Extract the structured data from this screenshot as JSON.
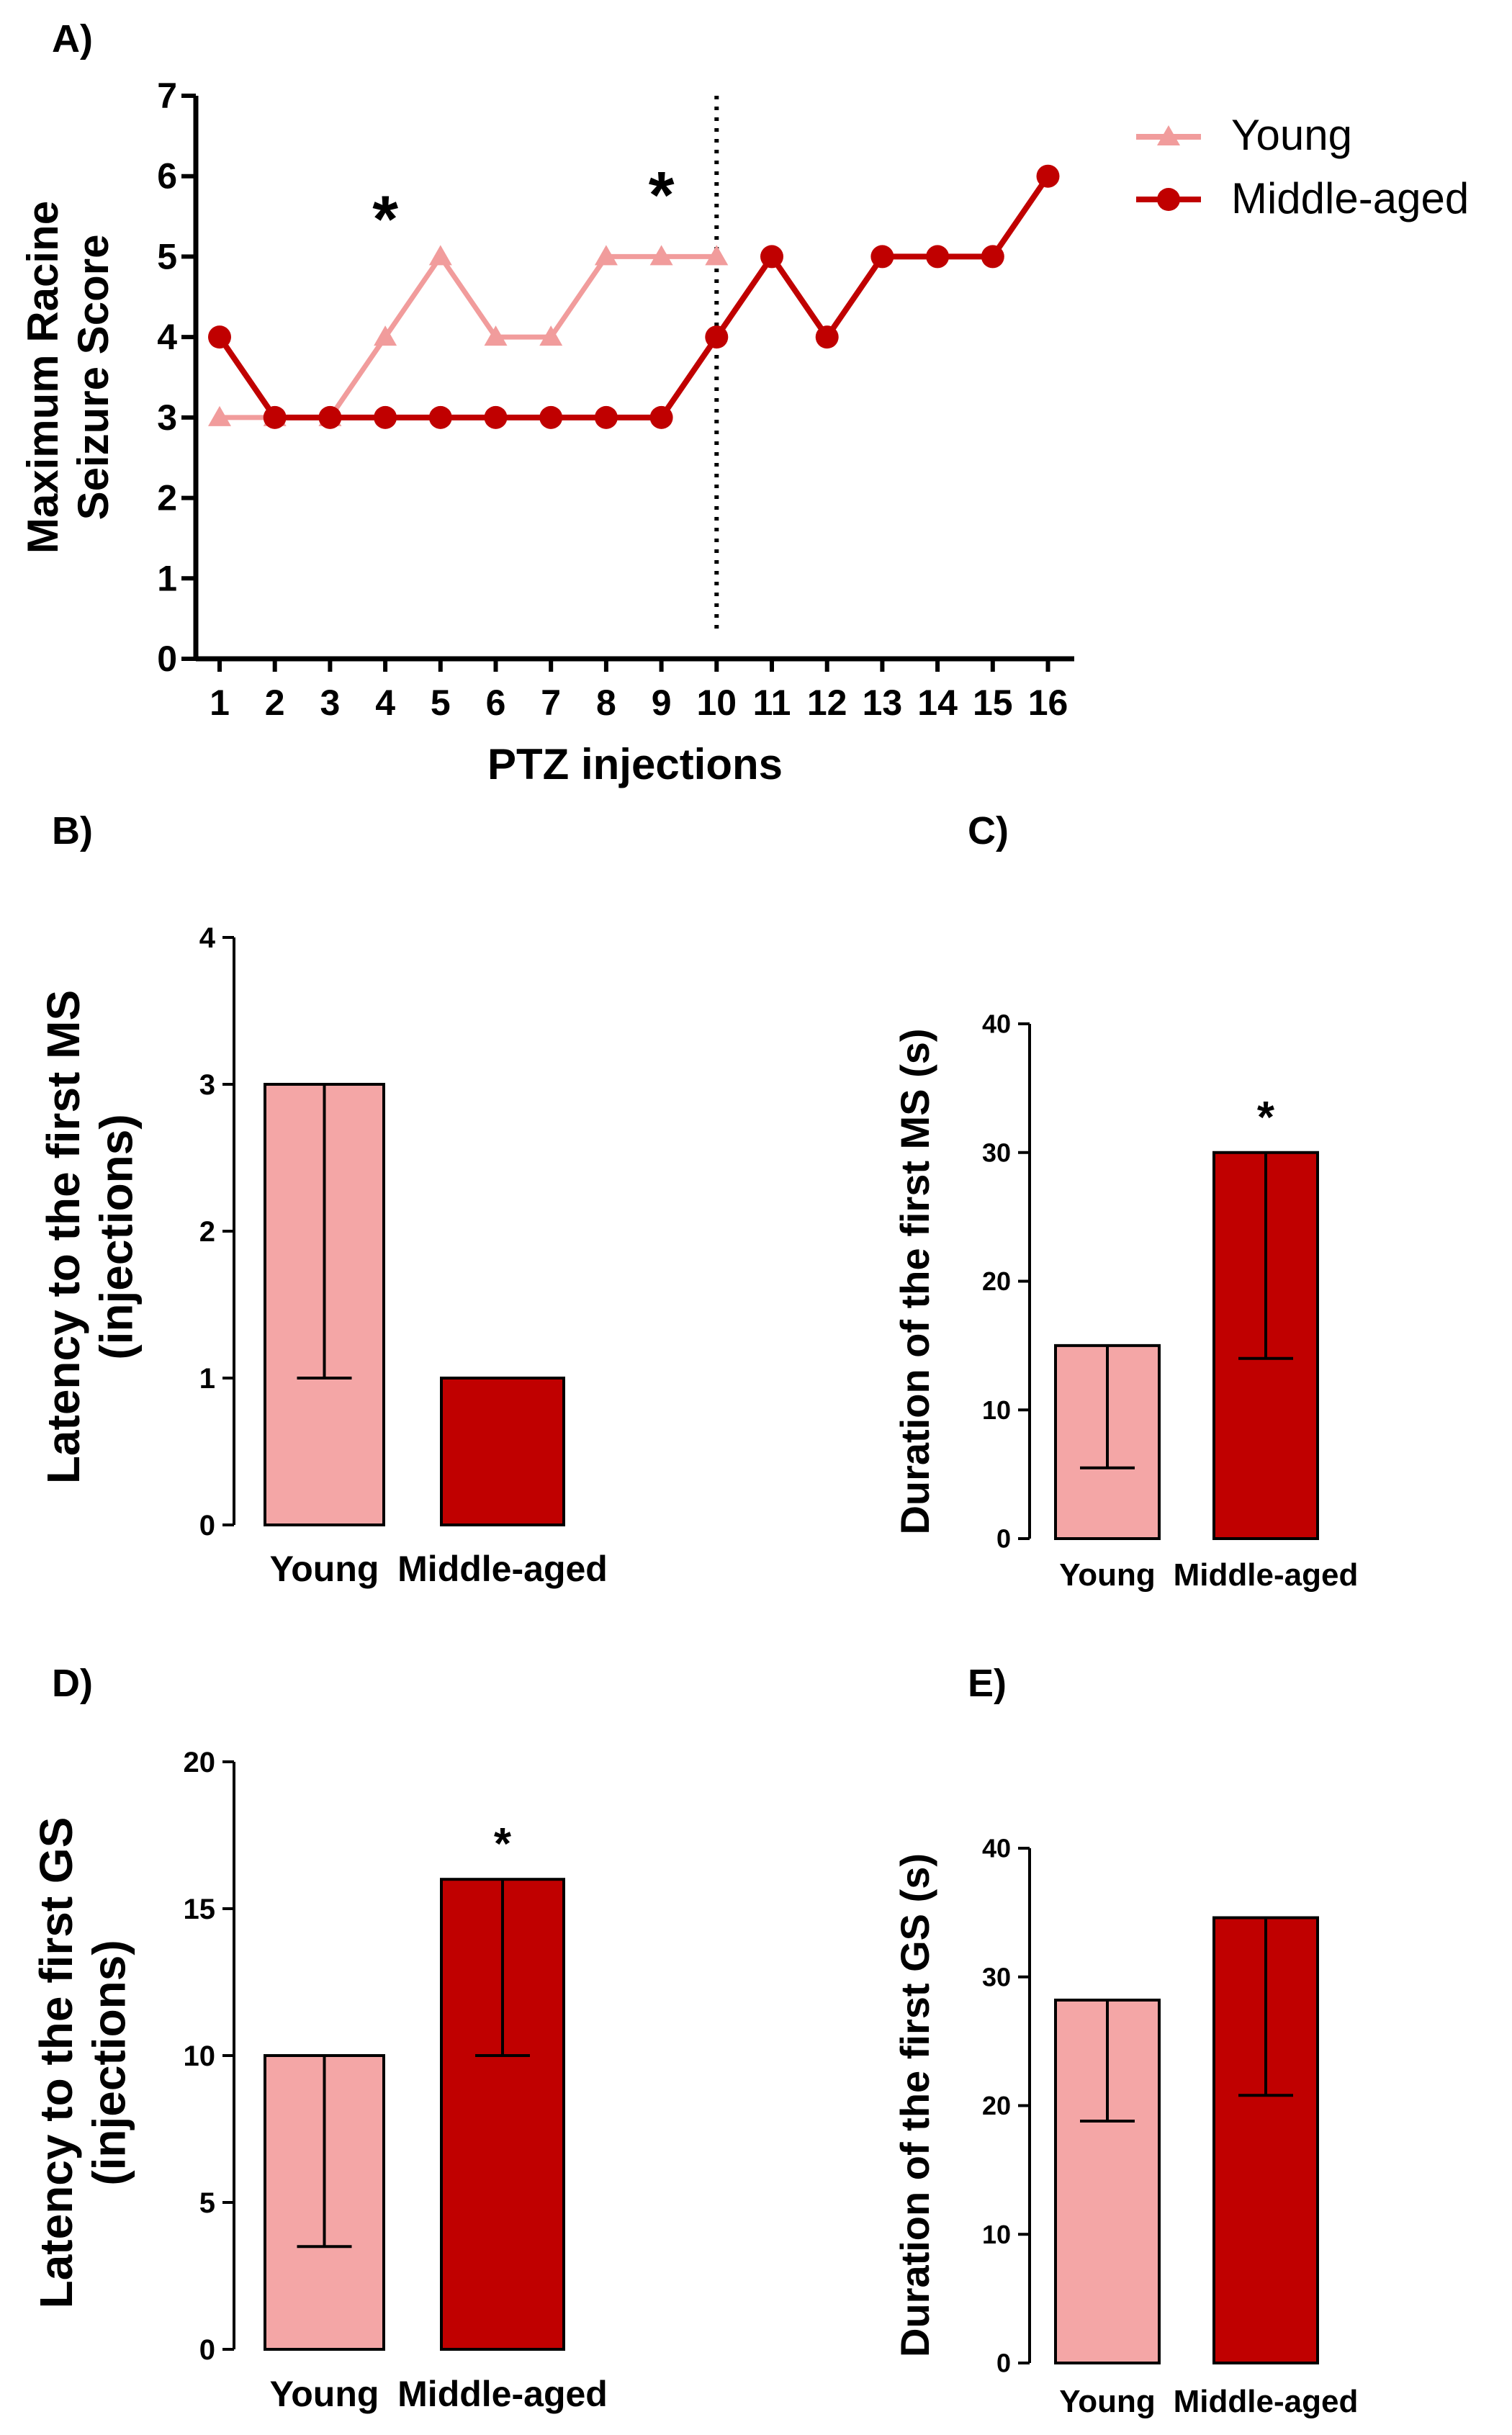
{
  "colors": {
    "young": "#f4a6a6",
    "young_line": "#f19c9c",
    "middle": "#c00000",
    "axis": "#000000"
  },
  "chart_data": [
    {
      "id": "A",
      "panel_label": "A)",
      "type": "line",
      "xlabel": "PTZ injections",
      "ylabel_lines": [
        "Maximum Racine",
        "Seizure Score"
      ],
      "ylim": [
        0,
        7
      ],
      "yticks": [
        0,
        1,
        2,
        3,
        4,
        5,
        6,
        7
      ],
      "x": [
        1,
        2,
        3,
        4,
        5,
        6,
        7,
        8,
        9,
        10,
        11,
        12,
        13,
        14,
        15,
        16
      ],
      "series": [
        {
          "name": "Young",
          "marker": "triangle",
          "x": [
            1,
            2,
            3,
            4,
            5,
            6,
            7,
            8,
            9,
            10
          ],
          "values": [
            3,
            3,
            3,
            4,
            5,
            4,
            4,
            5,
            5,
            5
          ]
        },
        {
          "name": "Middle-aged",
          "marker": "circle",
          "x": [
            1,
            2,
            3,
            4,
            5,
            6,
            7,
            8,
            9,
            10,
            11,
            12,
            13,
            14,
            15,
            16
          ],
          "values": [
            4,
            3,
            3,
            3,
            3,
            3,
            3,
            3,
            3,
            4,
            5,
            4,
            5,
            5,
            5,
            6
          ]
        }
      ],
      "vline_x": 10,
      "annotations": [
        {
          "text": "*",
          "x": 4,
          "y": 5.7
        },
        {
          "text": "*",
          "x": 9,
          "y": 6.0
        }
      ],
      "legend": [
        "Young",
        "Middle-aged"
      ],
      "legend_position": "top-right"
    },
    {
      "id": "B",
      "panel_label": "B)",
      "type": "bar",
      "categories": [
        "Young",
        "Middle-aged"
      ],
      "values": [
        3,
        1
      ],
      "error_low": [
        1,
        null
      ],
      "ylabel_lines": [
        "Latency to the first MS",
        "(injections)"
      ],
      "ylim": [
        0,
        4
      ],
      "yticks": [
        0,
        1,
        2,
        3,
        4
      ],
      "significance": [
        null,
        null
      ]
    },
    {
      "id": "C",
      "panel_label": "C)",
      "type": "bar",
      "categories": [
        "Young",
        "Middle-aged"
      ],
      "values": [
        15,
        30
      ],
      "error_low": [
        5.5,
        14
      ],
      "ylabel_lines": [
        "Duration of the first MS (s)"
      ],
      "ylim": [
        0,
        40
      ],
      "yticks": [
        0,
        10,
        20,
        30,
        40
      ],
      "significance": [
        null,
        "*"
      ]
    },
    {
      "id": "D",
      "panel_label": "D)",
      "type": "bar",
      "categories": [
        "Young",
        "Middle-aged"
      ],
      "values": [
        10,
        16
      ],
      "error_low": [
        3.5,
        10
      ],
      "ylabel_lines": [
        "Latency to the first GS",
        "(injections)"
      ],
      "ylim": [
        0,
        20
      ],
      "yticks": [
        0,
        5,
        10,
        15,
        20
      ],
      "significance": [
        null,
        "*"
      ]
    },
    {
      "id": "E",
      "panel_label": "E)",
      "type": "bar",
      "categories": [
        "Young",
        "Middle-aged"
      ],
      "values": [
        28.2,
        34.6
      ],
      "error_low": [
        18.8,
        20.8
      ],
      "ylabel_lines": [
        "Duration of the first GS (s)"
      ],
      "ylim": [
        0,
        40
      ],
      "yticks": [
        0,
        10,
        20,
        30,
        40
      ],
      "significance": [
        null,
        null
      ]
    }
  ]
}
